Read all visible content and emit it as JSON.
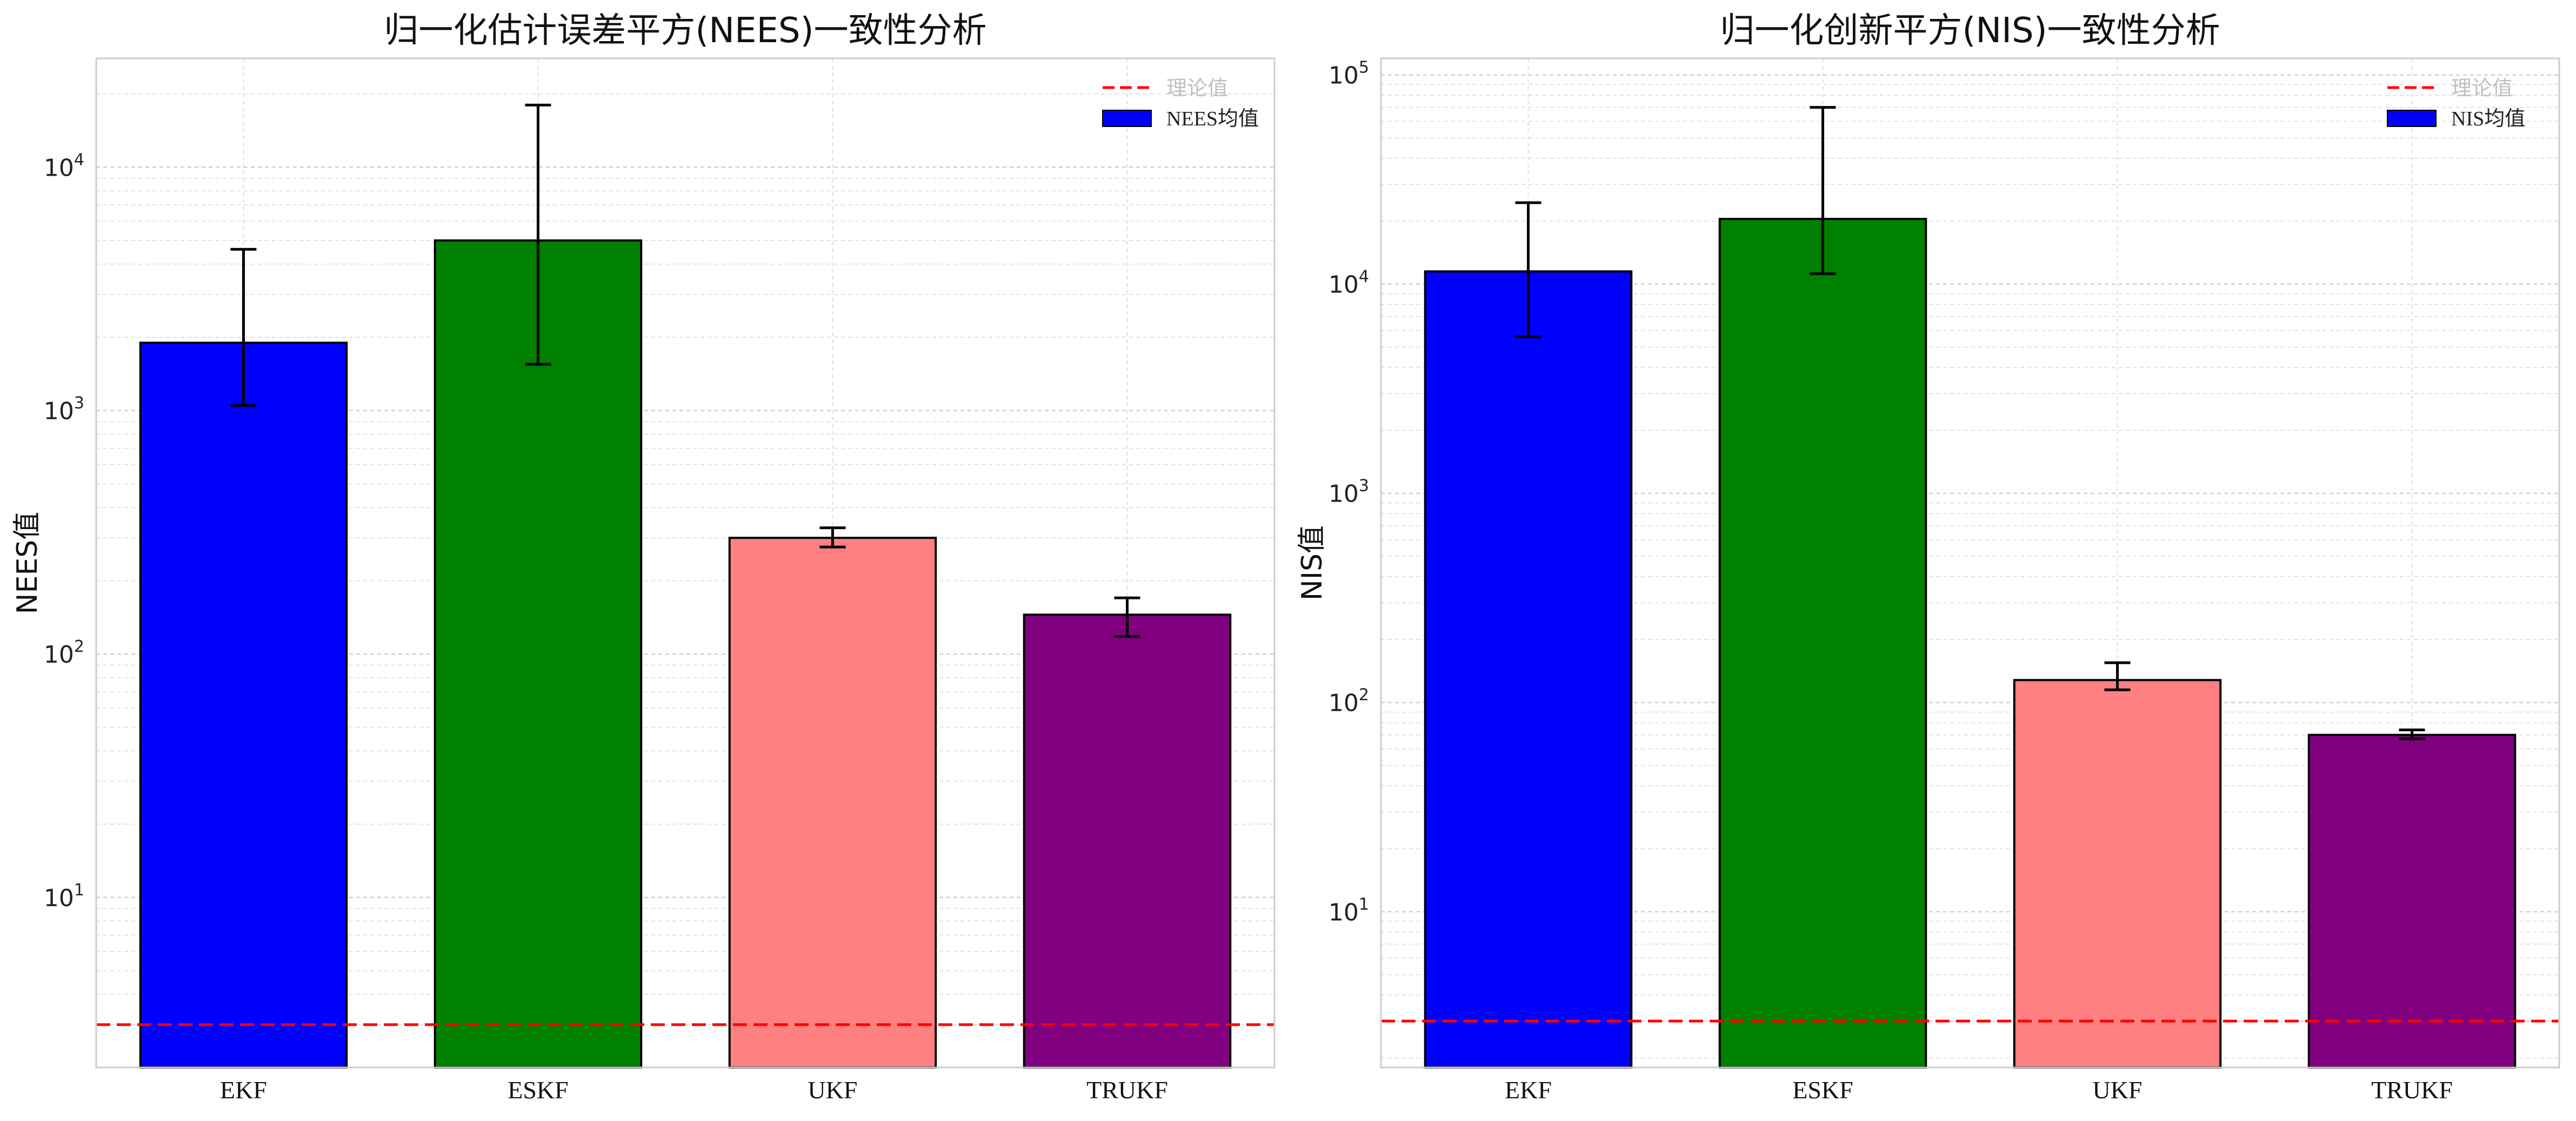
{
  "chart_data": [
    {
      "type": "bar",
      "title": "归一化估计误差平方(NEES)一致性分析",
      "ylabel": "NEES值",
      "xlabel": "",
      "yscale": "log",
      "ylim": [
        2,
        28000
      ],
      "yticks": [
        10,
        100,
        1000,
        10000
      ],
      "grid": true,
      "legend_position": "top-right",
      "legend": [
        {
          "label": "理论值",
          "kind": "dashed-line",
          "color": "#ff0000"
        },
        {
          "label": "NEES均值",
          "kind": "patch",
          "color": "#0000ff"
        }
      ],
      "reference_line": {
        "value": 3.0,
        "color": "#ff0000",
        "style": "dashed"
      },
      "categories": [
        "EKF",
        "ESKF",
        "UKF",
        "TRUKF"
      ],
      "values": [
        1900,
        5000,
        300,
        145
      ],
      "error_low": [
        1050,
        1550,
        275,
        118
      ],
      "error_high": [
        4600,
        18000,
        330,
        170
      ],
      "colors": [
        "#0000ff",
        "#008000",
        "#ff8080",
        "#800080"
      ]
    },
    {
      "type": "bar",
      "title": "归一化创新平方(NIS)一致性分析",
      "ylabel": "NIS值",
      "xlabel": "",
      "yscale": "log",
      "ylim": [
        1.8,
        120000
      ],
      "yticks": [
        10,
        100,
        1000,
        10000,
        100000
      ],
      "grid": true,
      "legend_position": "top-right",
      "legend": [
        {
          "label": "理论值",
          "kind": "dashed-line",
          "color": "#ff0000"
        },
        {
          "label": "NIS均值",
          "kind": "patch",
          "color": "#0000ff"
        }
      ],
      "reference_line": {
        "value": 3.0,
        "color": "#ff0000",
        "style": "dashed"
      },
      "categories": [
        "EKF",
        "ESKF",
        "UKF",
        "TRUKF"
      ],
      "values": [
        11500,
        20500,
        128,
        70
      ],
      "error_low": [
        5600,
        11200,
        115,
        67
      ],
      "error_high": [
        24500,
        70000,
        155,
        74
      ],
      "colors": [
        "#0000ff",
        "#008000",
        "#ff8080",
        "#800080"
      ]
    }
  ]
}
